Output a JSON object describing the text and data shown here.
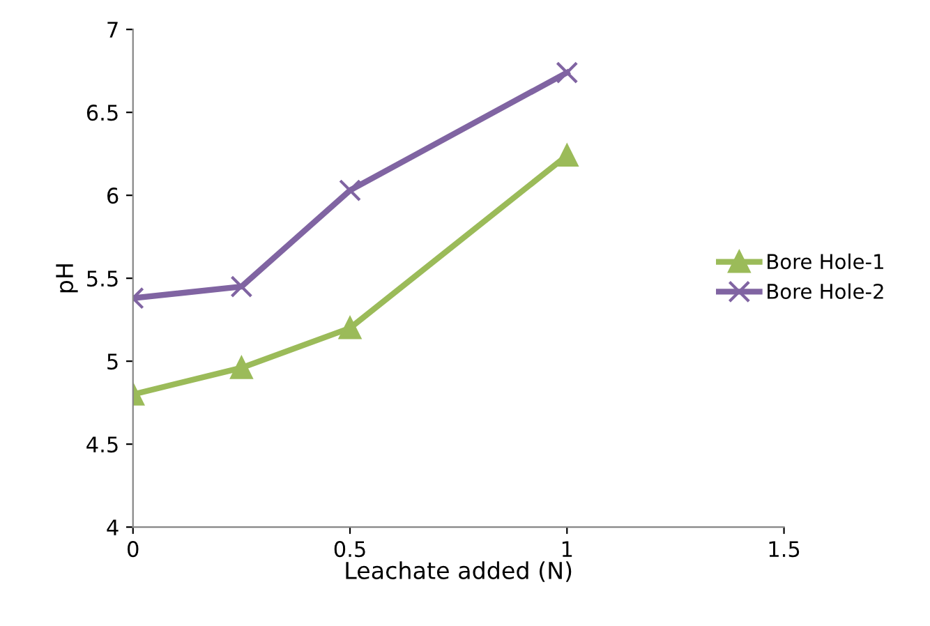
{
  "chart_data": {
    "type": "line",
    "xlabel": "Leachate added (N)",
    "ylabel": "pH",
    "xlim": [
      0,
      1.5
    ],
    "xticks": [
      0,
      0.5,
      1,
      1.5
    ],
    "ylim": [
      4,
      7
    ],
    "yticks": [
      4,
      4.5,
      5,
      5.5,
      6,
      6.5,
      7
    ],
    "grid": false,
    "legend": "right",
    "series": [
      {
        "name": "Bore Hole-1",
        "color": "#9bbb59",
        "marker": "triangle",
        "x": [
          0,
          0.25,
          0.5,
          1
        ],
        "values": [
          4.8,
          4.96,
          5.2,
          6.24
        ]
      },
      {
        "name": "Bore Hole-2",
        "color": "#8064a2",
        "marker": "cross",
        "x": [
          0,
          0.25,
          0.5,
          1
        ],
        "values": [
          5.38,
          5.45,
          6.03,
          6.74
        ]
      }
    ]
  }
}
